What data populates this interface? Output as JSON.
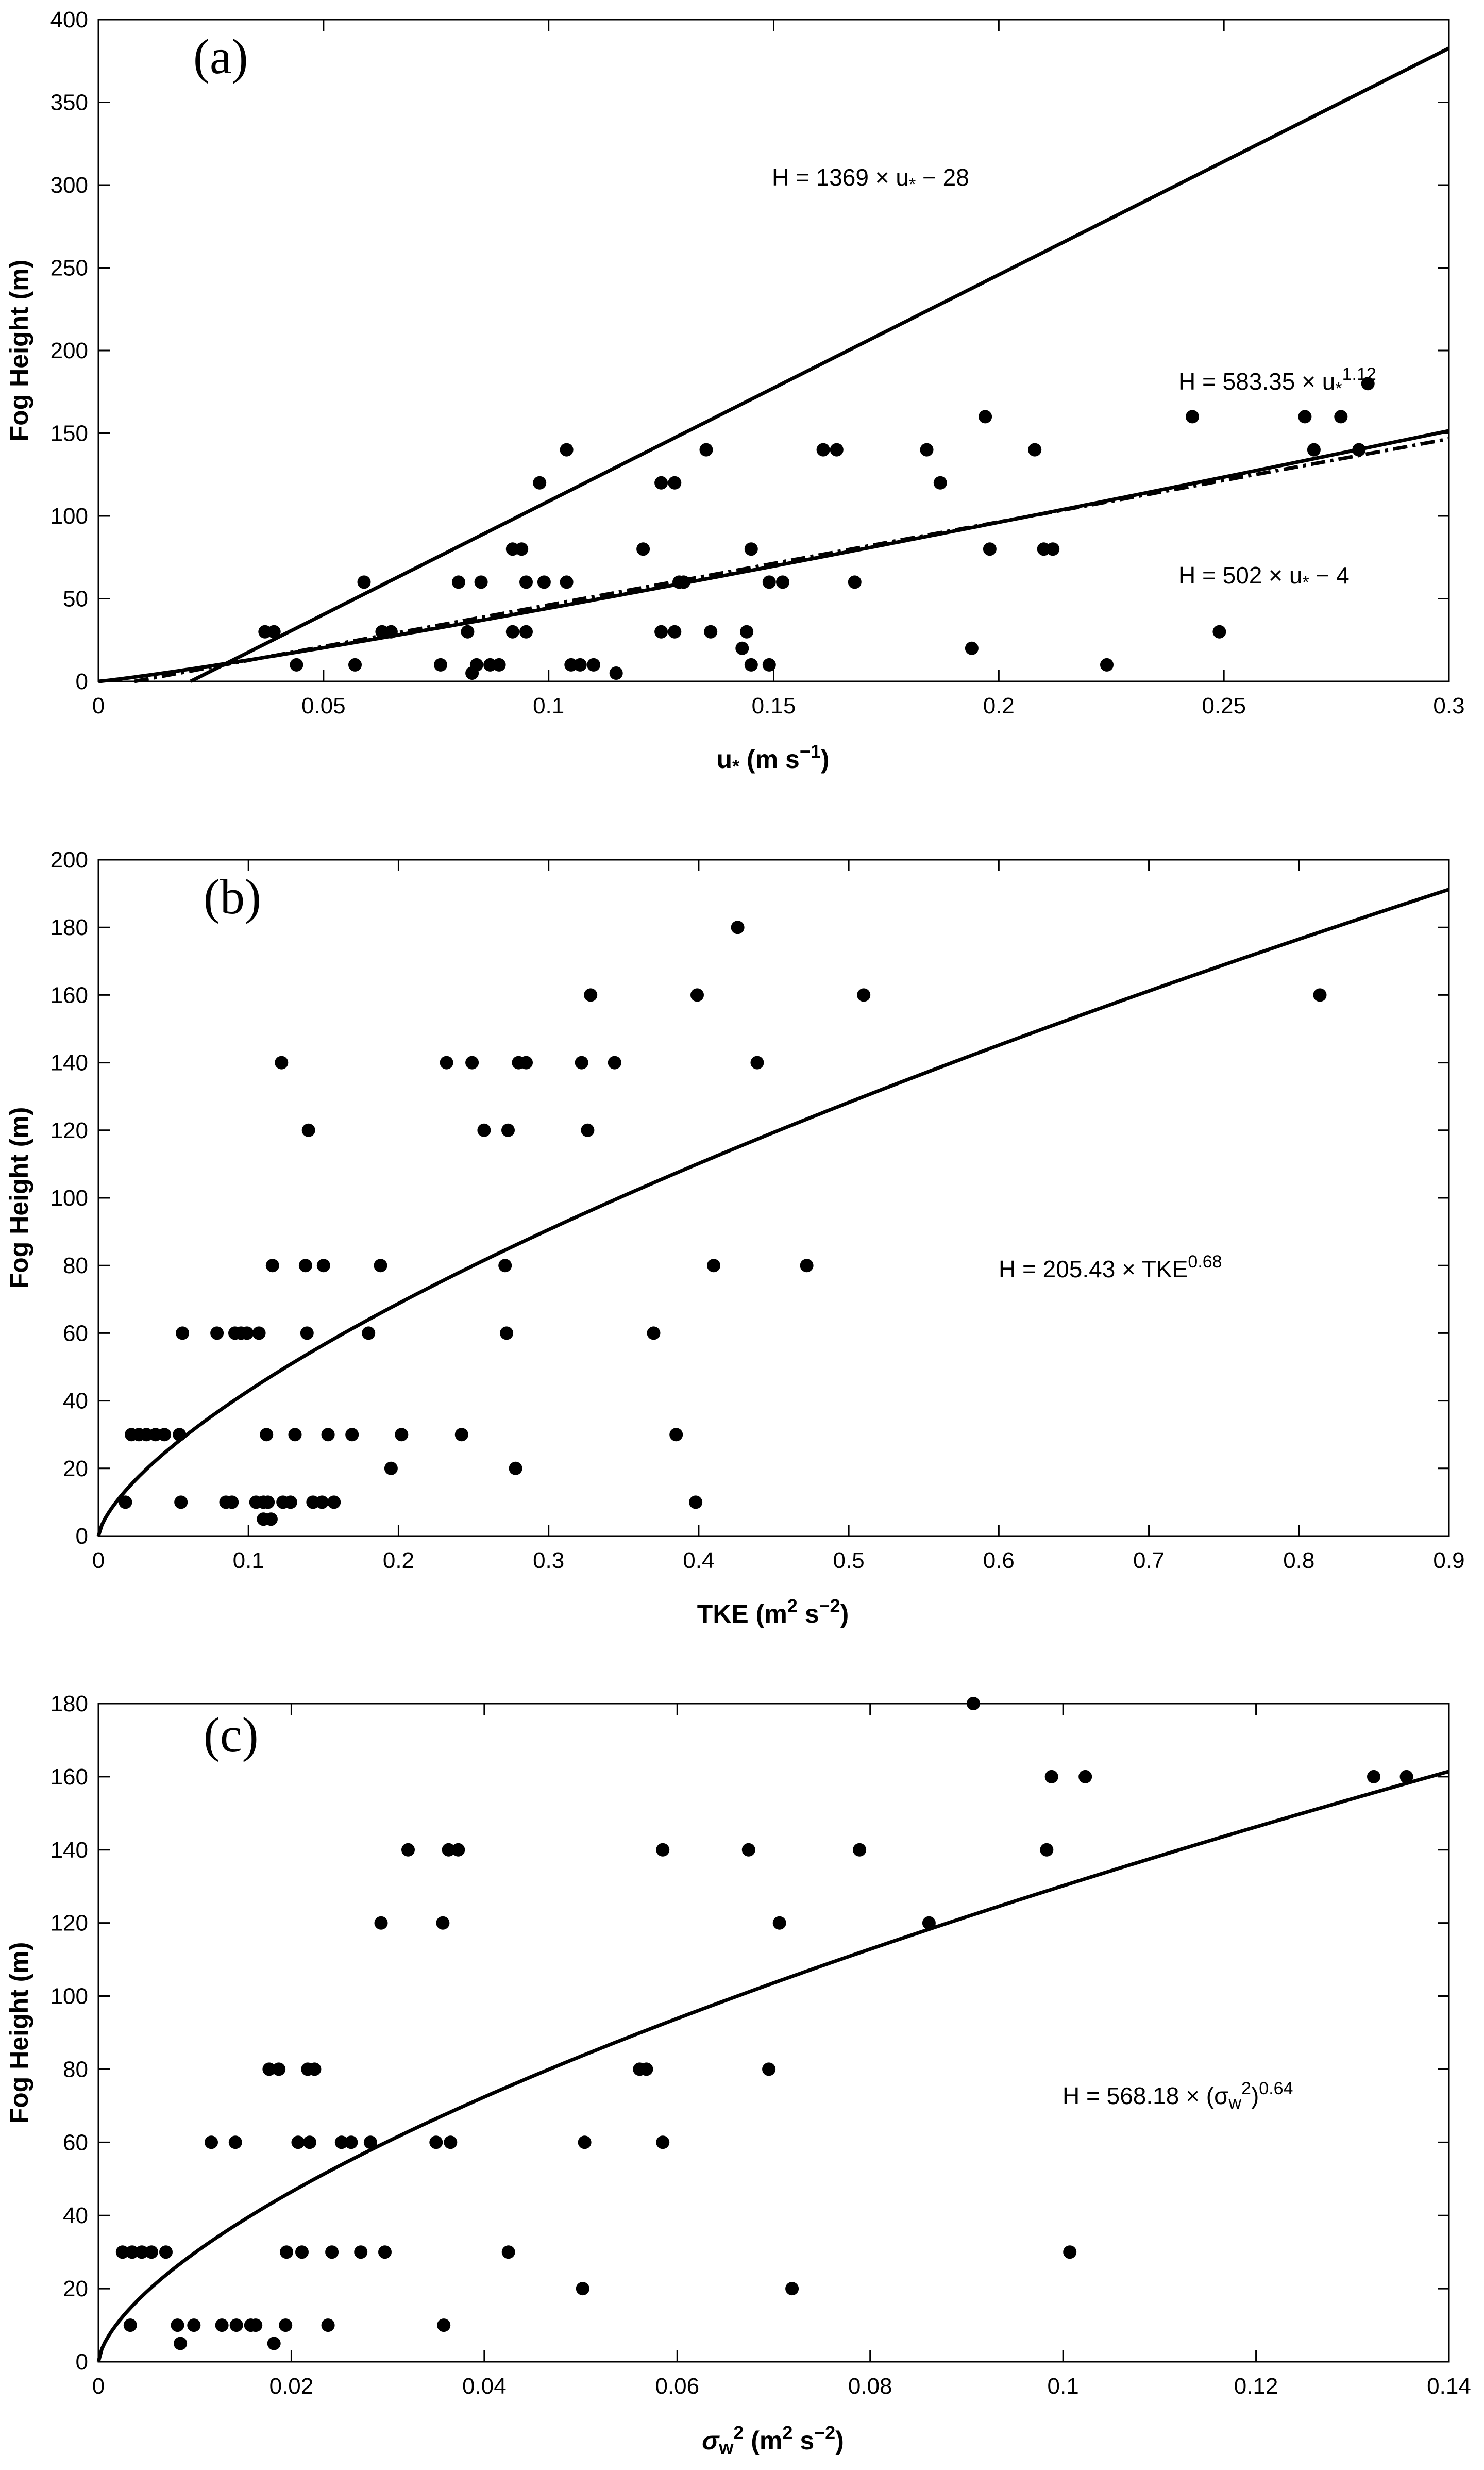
{
  "figure": {
    "panels": [
      "a",
      "b",
      "c"
    ]
  },
  "chart_data": [
    {
      "type": "scatter",
      "panel_label": "(a)",
      "title": "",
      "xlabel": "u",
      "xlabel_sub": "*",
      "xlabel_units": "(m s",
      "xlabel_sup": "−1",
      "xlabel_close": ")",
      "ylabel": "Fog Height (m)",
      "xlim": [
        0,
        0.3
      ],
      "ylim": [
        0,
        400
      ],
      "xticks": [
        0,
        0.05,
        0.1,
        0.15,
        0.2,
        0.25,
        0.3
      ],
      "xtick_labels": [
        "0",
        "0.05",
        "0.1",
        "0.15",
        "0.2",
        "0.25",
        "0.3"
      ],
      "yticks": [
        0,
        50,
        100,
        150,
        200,
        250,
        300,
        350,
        400
      ],
      "ytick_labels": [
        "0",
        "50",
        "100",
        "150",
        "200",
        "250",
        "300",
        "350",
        "400"
      ],
      "points": [
        [
          0.037,
          30
        ],
        [
          0.039,
          30
        ],
        [
          0.044,
          10
        ],
        [
          0.057,
          10
        ],
        [
          0.059,
          60
        ],
        [
          0.063,
          30
        ],
        [
          0.065,
          30
        ],
        [
          0.076,
          10
        ],
        [
          0.08,
          60
        ],
        [
          0.082,
          30
        ],
        [
          0.083,
          5
        ],
        [
          0.084,
          10
        ],
        [
          0.085,
          60
        ],
        [
          0.087,
          10
        ],
        [
          0.089,
          10
        ],
        [
          0.092,
          80
        ],
        [
          0.092,
          30
        ],
        [
          0.094,
          80
        ],
        [
          0.095,
          60
        ],
        [
          0.095,
          30
        ],
        [
          0.098,
          120
        ],
        [
          0.099,
          60
        ],
        [
          0.104,
          140
        ],
        [
          0.104,
          60
        ],
        [
          0.105,
          10
        ],
        [
          0.107,
          10
        ],
        [
          0.11,
          10
        ],
        [
          0.115,
          5
        ],
        [
          0.121,
          80
        ],
        [
          0.125,
          120
        ],
        [
          0.125,
          30
        ],
        [
          0.128,
          120
        ],
        [
          0.128,
          30
        ],
        [
          0.129,
          60
        ],
        [
          0.13,
          60
        ],
        [
          0.135,
          140
        ],
        [
          0.136,
          30
        ],
        [
          0.143,
          20
        ],
        [
          0.144,
          30
        ],
        [
          0.145,
          80
        ],
        [
          0.145,
          10
        ],
        [
          0.149,
          60
        ],
        [
          0.149,
          10
        ],
        [
          0.152,
          60
        ],
        [
          0.161,
          140
        ],
        [
          0.164,
          140
        ],
        [
          0.168,
          60
        ],
        [
          0.184,
          140
        ],
        [
          0.187,
          120
        ],
        [
          0.194,
          20
        ],
        [
          0.197,
          160
        ],
        [
          0.198,
          80
        ],
        [
          0.208,
          140
        ],
        [
          0.21,
          80
        ],
        [
          0.212,
          80
        ],
        [
          0.224,
          10
        ],
        [
          0.243,
          160
        ],
        [
          0.249,
          30
        ],
        [
          0.268,
          160
        ],
        [
          0.27,
          140
        ],
        [
          0.276,
          160
        ],
        [
          0.28,
          140
        ],
        [
          0.282,
          180
        ]
      ],
      "series": [
        {
          "name": "H = 1369 × u* − 28",
          "style": "solid",
          "kind": "linear",
          "slope": 1369,
          "intercept": -28,
          "x_range": [
            0.0205,
            0.3
          ]
        },
        {
          "name": "H = 583.35 × u*^1.12",
          "style": "solid",
          "kind": "power",
          "coef": 583.35,
          "exponent": 1.12,
          "x_range": [
            0,
            0.3
          ]
        },
        {
          "name": "H = 502 × u* − 4",
          "style": "dashed",
          "kind": "linear",
          "slope": 502,
          "intercept": -4,
          "x_range": [
            0.008,
            0.3
          ]
        }
      ],
      "annotations": [
        {
          "text": "H = 1369 × u",
          "sub": "*",
          "after": " − 28"
        },
        {
          "text": "H = 583.35 × u",
          "sub": "*",
          "sup": "1.12"
        },
        {
          "text": "H = 502 × u",
          "sub": "*",
          "after": " − 4"
        }
      ]
    },
    {
      "type": "scatter",
      "panel_label": "(b)",
      "title": "",
      "xlabel": "TKE (m",
      "xlabel_sup": "2",
      "xlabel_units": " s",
      "xlabel_sup2": "−2",
      "xlabel_close": ")",
      "ylabel": "Fog Height (m)",
      "xlim": [
        0,
        0.9
      ],
      "ylim": [
        0,
        200
      ],
      "xticks": [
        0,
        0.1,
        0.2,
        0.3,
        0.4,
        0.5,
        0.6,
        0.7,
        0.8,
        0.9
      ],
      "xtick_labels": [
        "0",
        "0.1",
        "0.2",
        "0.3",
        "0.4",
        "0.5",
        "0.6",
        "0.7",
        "0.8",
        "0.9"
      ],
      "yticks": [
        0,
        20,
        40,
        60,
        80,
        100,
        120,
        140,
        160,
        180,
        200
      ],
      "ytick_labels": [
        "0",
        "20",
        "40",
        "60",
        "80",
        "100",
        "120",
        "140",
        "160",
        "180",
        "200"
      ],
      "points": [
        [
          0.018,
          10
        ],
        [
          0.022,
          30
        ],
        [
          0.027,
          30
        ],
        [
          0.032,
          30
        ],
        [
          0.038,
          30
        ],
        [
          0.044,
          30
        ],
        [
          0.054,
          30
        ],
        [
          0.055,
          10
        ],
        [
          0.056,
          60
        ],
        [
          0.079,
          60
        ],
        [
          0.085,
          10
        ],
        [
          0.089,
          10
        ],
        [
          0.091,
          60
        ],
        [
          0.095,
          60
        ],
        [
          0.099,
          60
        ],
        [
          0.105,
          10
        ],
        [
          0.107,
          60
        ],
        [
          0.11,
          10
        ],
        [
          0.11,
          5
        ],
        [
          0.112,
          30
        ],
        [
          0.113,
          10
        ],
        [
          0.115,
          5
        ],
        [
          0.116,
          80
        ],
        [
          0.122,
          140
        ],
        [
          0.123,
          10
        ],
        [
          0.128,
          10
        ],
        [
          0.131,
          30
        ],
        [
          0.138,
          80
        ],
        [
          0.139,
          60
        ],
        [
          0.14,
          120
        ],
        [
          0.143,
          10
        ],
        [
          0.149,
          10
        ],
        [
          0.15,
          80
        ],
        [
          0.153,
          30
        ],
        [
          0.157,
          10
        ],
        [
          0.169,
          30
        ],
        [
          0.18,
          60
        ],
        [
          0.188,
          80
        ],
        [
          0.195,
          20
        ],
        [
          0.202,
          30
        ],
        [
          0.232,
          140
        ],
        [
          0.242,
          30
        ],
        [
          0.249,
          140
        ],
        [
          0.257,
          120
        ],
        [
          0.271,
          80
        ],
        [
          0.272,
          60
        ],
        [
          0.273,
          120
        ],
        [
          0.278,
          20
        ],
        [
          0.28,
          140
        ],
        [
          0.285,
          140
        ],
        [
          0.322,
          140
        ],
        [
          0.326,
          120
        ],
        [
          0.328,
          160
        ],
        [
          0.344,
          140
        ],
        [
          0.37,
          60
        ],
        [
          0.385,
          30
        ],
        [
          0.398,
          10
        ],
        [
          0.399,
          160
        ],
        [
          0.41,
          80
        ],
        [
          0.426,
          180
        ],
        [
          0.439,
          140
        ],
        [
          0.472,
          80
        ],
        [
          0.51,
          160
        ],
        [
          0.814,
          160
        ]
      ],
      "series": [
        {
          "name": "H = 205.43 × TKE^0.68",
          "style": "solid",
          "kind": "power",
          "coef": 205.43,
          "exponent": 0.68,
          "x_range": [
            0,
            0.9
          ]
        }
      ],
      "annotations": [
        {
          "text": "H = 205.43 × TKE",
          "sup": "0.68"
        }
      ]
    },
    {
      "type": "scatter",
      "panel_label": "(c)",
      "title": "",
      "xlabel": "σ",
      "xlabel_sub": "w",
      "xlabel_sup": "2",
      "xlabel_units": " (m",
      "xlabel_sup2": "2",
      "xlabel_units2": " s",
      "xlabel_sup3": "−2",
      "xlabel_close": ")",
      "ylabel": "Fog Height (m)",
      "xlim": [
        0,
        0.14
      ],
      "ylim": [
        0,
        180
      ],
      "xticks": [
        0,
        0.02,
        0.04,
        0.06,
        0.08,
        0.1,
        0.12,
        0.14
      ],
      "xtick_labels": [
        "0",
        "0.02",
        "0.04",
        "0.06",
        "0.08",
        "0.1",
        "0.12",
        "0.14"
      ],
      "yticks": [
        0,
        20,
        40,
        60,
        80,
        100,
        120,
        140,
        160,
        180
      ],
      "ytick_labels": [
        "0",
        "20",
        "40",
        "60",
        "80",
        "100",
        "120",
        "140",
        "160",
        "180"
      ],
      "points": [
        [
          0.0025,
          30
        ],
        [
          0.0033,
          10
        ],
        [
          0.0035,
          30
        ],
        [
          0.0045,
          30
        ],
        [
          0.0055,
          30
        ],
        [
          0.007,
          30
        ],
        [
          0.0082,
          10
        ],
        [
          0.0085,
          5
        ],
        [
          0.0099,
          10
        ],
        [
          0.0117,
          60
        ],
        [
          0.0128,
          10
        ],
        [
          0.0142,
          60
        ],
        [
          0.0143,
          10
        ],
        [
          0.0158,
          10
        ],
        [
          0.0163,
          10
        ],
        [
          0.0177,
          80
        ],
        [
          0.0182,
          5
        ],
        [
          0.0187,
          80
        ],
        [
          0.0194,
          10
        ],
        [
          0.0195,
          30
        ],
        [
          0.0207,
          60
        ],
        [
          0.0211,
          30
        ],
        [
          0.0217,
          80
        ],
        [
          0.0219,
          60
        ],
        [
          0.0224,
          80
        ],
        [
          0.0238,
          10
        ],
        [
          0.0242,
          30
        ],
        [
          0.0252,
          60
        ],
        [
          0.0262,
          60
        ],
        [
          0.0272,
          30
        ],
        [
          0.0282,
          60
        ],
        [
          0.0293,
          120
        ],
        [
          0.0297,
          30
        ],
        [
          0.0321,
          140
        ],
        [
          0.035,
          60
        ],
        [
          0.0357,
          120
        ],
        [
          0.0358,
          10
        ],
        [
          0.0363,
          140
        ],
        [
          0.0365,
          60
        ],
        [
          0.0373,
          140
        ],
        [
          0.0425,
          30
        ],
        [
          0.0502,
          20
        ],
        [
          0.0504,
          60
        ],
        [
          0.0561,
          80
        ],
        [
          0.0568,
          80
        ],
        [
          0.0585,
          60
        ],
        [
          0.0585,
          140
        ],
        [
          0.0674,
          140
        ],
        [
          0.0695,
          80
        ],
        [
          0.0706,
          120
        ],
        [
          0.0719,
          20
        ],
        [
          0.0789,
          140
        ],
        [
          0.0861,
          120
        ],
        [
          0.0907,
          180
        ],
        [
          0.0983,
          140
        ],
        [
          0.0988,
          160
        ],
        [
          0.1007,
          30
        ],
        [
          0.1023,
          160
        ],
        [
          0.1322,
          160
        ],
        [
          0.1356,
          160
        ]
      ],
      "series": [
        {
          "name": "H = 568.18 × (σw²)^0.64",
          "style": "solid",
          "kind": "power",
          "coef": 568.18,
          "exponent": 0.64,
          "x_range": [
            0,
            0.14
          ]
        }
      ],
      "annotations": [
        {
          "text": "H = 568.18 × (σ",
          "sub": "w",
          "sup": "2",
          "after": ")",
          "sup2": "0.64"
        }
      ]
    }
  ]
}
